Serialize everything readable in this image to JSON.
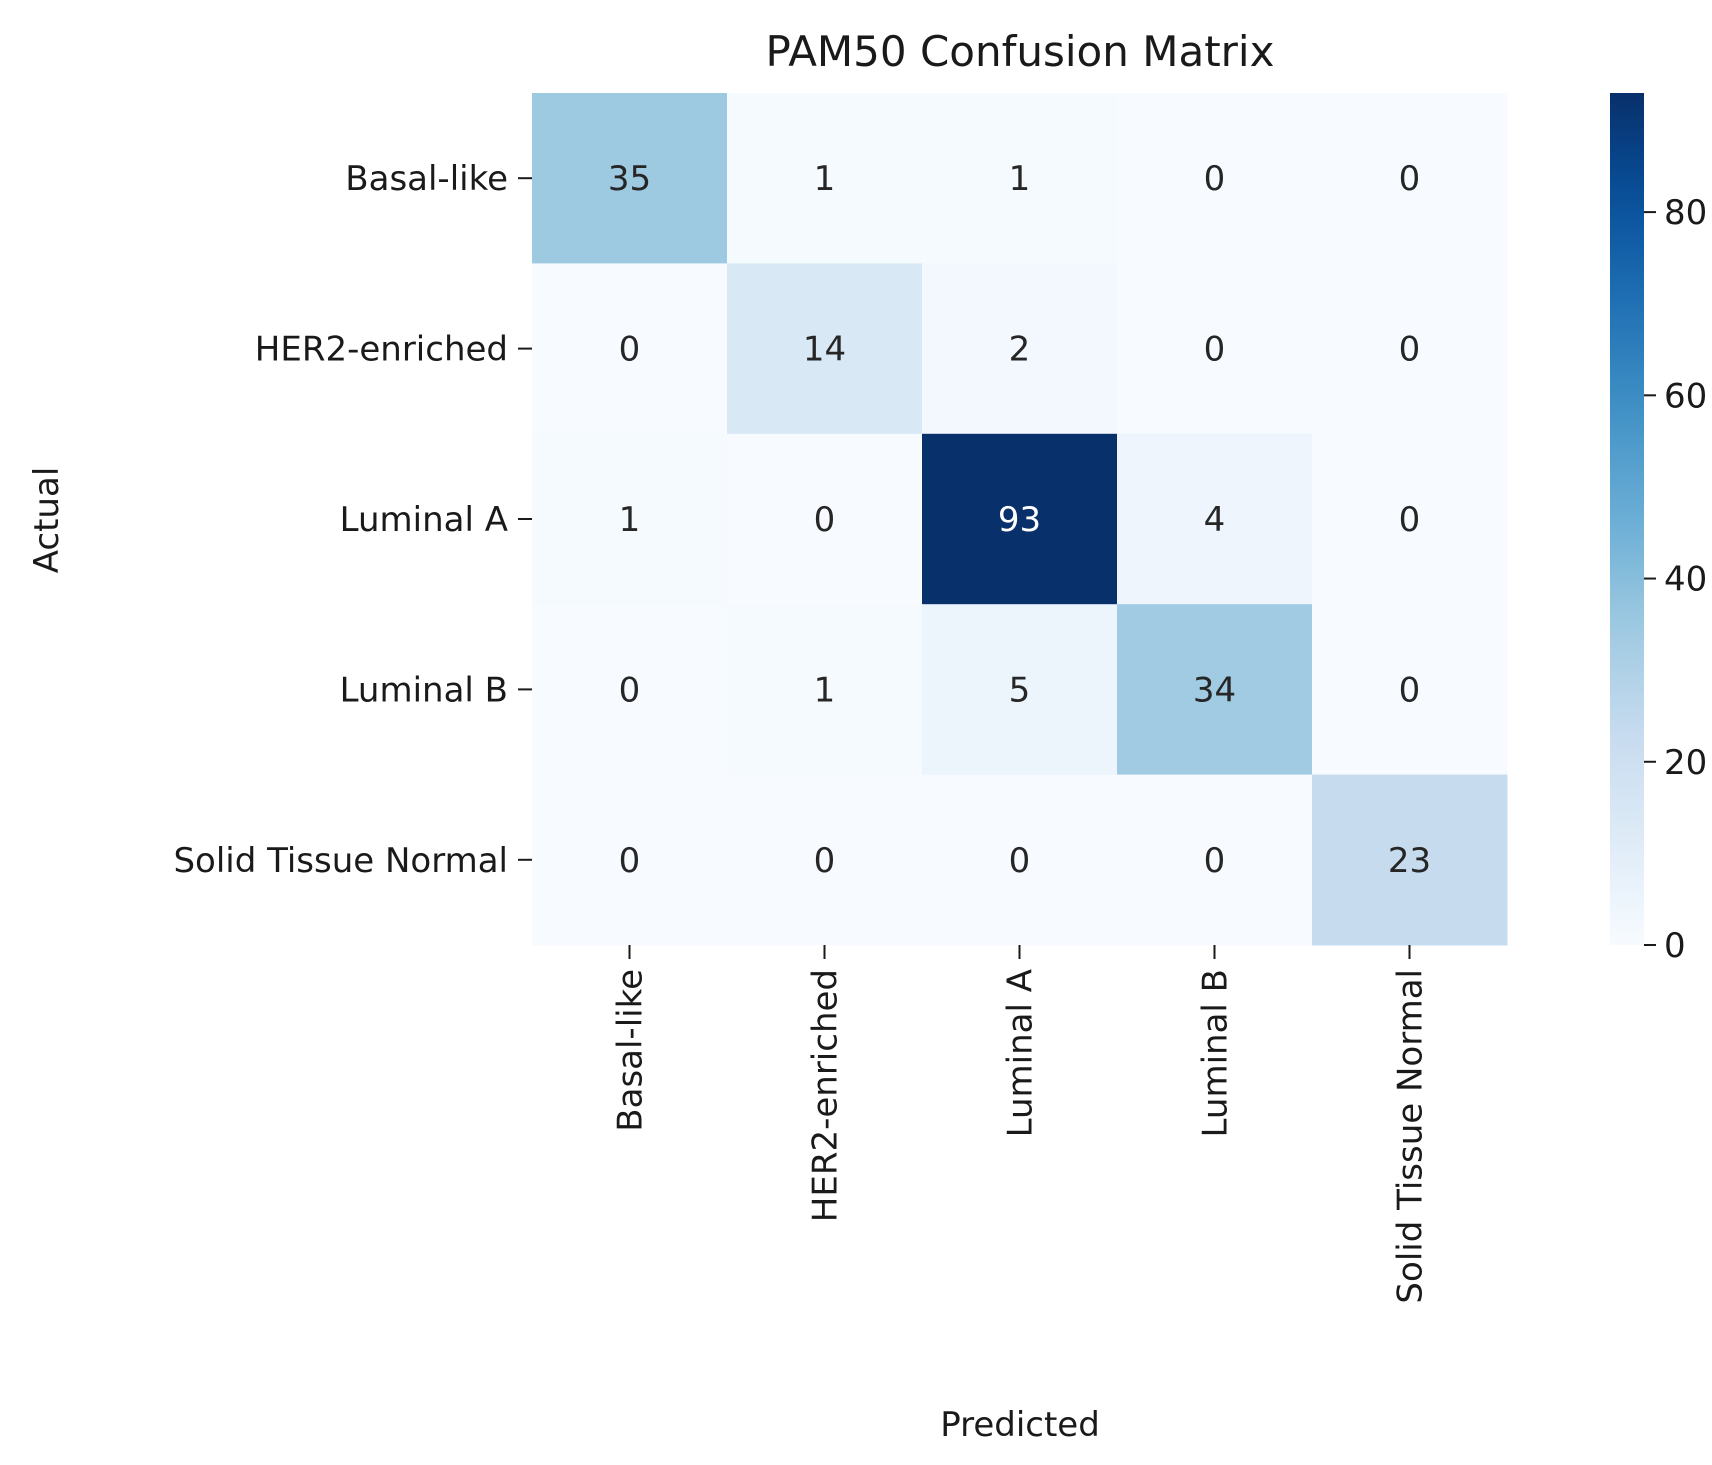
{
  "chart_data": {
    "type": "heatmap",
    "title": "PAM50 Confusion Matrix",
    "xlabel": "Predicted",
    "ylabel": "Actual",
    "x_categories": [
      "Basal-like",
      "HER2-enriched",
      "Luminal A",
      "Luminal B",
      "Solid Tissue Normal"
    ],
    "y_categories": [
      "Basal-like",
      "HER2-enriched",
      "Luminal A",
      "Luminal B",
      "Solid Tissue Normal"
    ],
    "values": [
      [
        35,
        1,
        1,
        0,
        0
      ],
      [
        0,
        14,
        2,
        0,
        0
      ],
      [
        1,
        0,
        93,
        4,
        0
      ],
      [
        0,
        1,
        5,
        34,
        0
      ],
      [
        0,
        0,
        0,
        0,
        23
      ]
    ],
    "colormap": "Blues",
    "vmin": 0,
    "vmax": 93,
    "colorbar_ticks": [
      0,
      20,
      40,
      60,
      80
    ],
    "annotations": "cell counts"
  }
}
